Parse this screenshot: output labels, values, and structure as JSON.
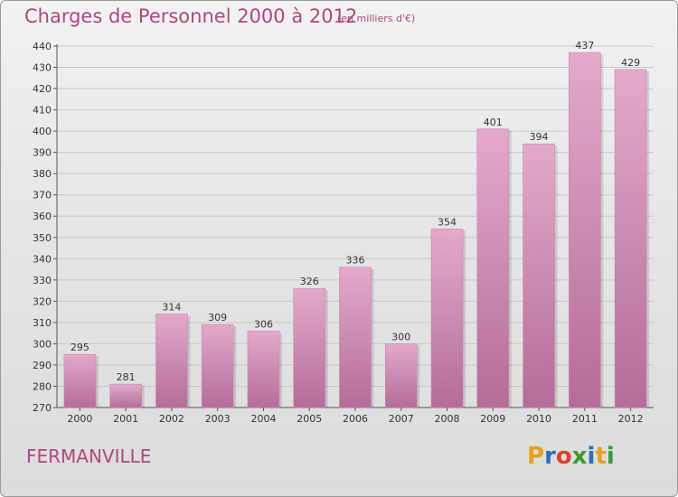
{
  "header": {
    "title": "Charges de Personnel 2000 à 2012",
    "unit": "(en milliers d'€)"
  },
  "footer": {
    "commune": "FERMANVILLE",
    "logo_text": "Proxiti"
  },
  "colors": {
    "title": "#b0487f",
    "bar_top": "#e4a9cb",
    "bar_bottom": "#b46d97",
    "grid": "#c8c8c8",
    "axis": "#555555",
    "logo": [
      "#e8a020",
      "#2f6fb5",
      "#d9442f",
      "#3a9a3a",
      "#2f6fb5",
      "#e8a020",
      "#3a9a3a"
    ]
  },
  "chart_data": {
    "type": "bar",
    "title": "Charges de Personnel 2000 à 2012",
    "subtitle": "(en milliers d'€)",
    "categories": [
      "2000",
      "2001",
      "2002",
      "2003",
      "2004",
      "2005",
      "2006",
      "2007",
      "2008",
      "2009",
      "2010",
      "2011",
      "2012"
    ],
    "values": [
      295,
      281,
      314,
      309,
      306,
      326,
      336,
      300,
      354,
      401,
      394,
      437,
      429
    ],
    "ylim": [
      270,
      440
    ],
    "yticks": [
      270,
      280,
      290,
      300,
      310,
      320,
      330,
      340,
      350,
      360,
      370,
      380,
      390,
      400,
      410,
      420,
      430,
      440
    ],
    "grid": true,
    "data_labels": true
  }
}
